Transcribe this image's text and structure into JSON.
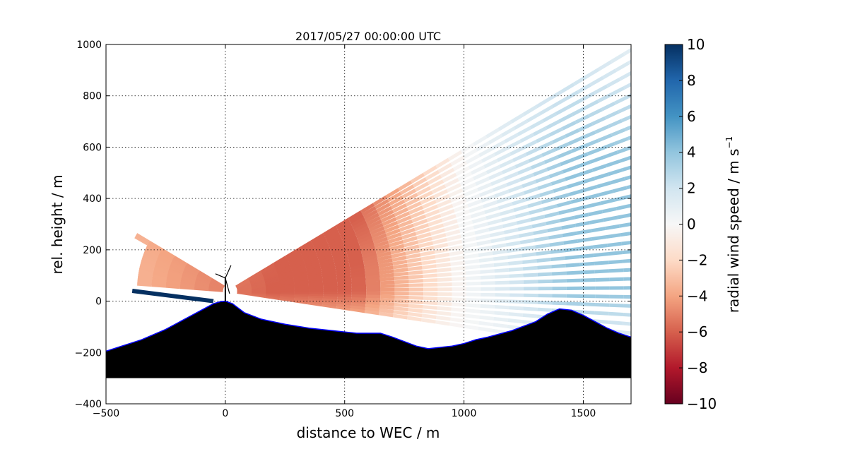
{
  "chart_data": {
    "type": "heatmap",
    "title": "2017/05/27 00:00:00 UTC",
    "xlabel": "distance to WEC / m",
    "ylabel": "rel. height / m",
    "xlim": [
      -500,
      1700
    ],
    "ylim": [
      -400,
      1000
    ],
    "xticks": [
      -500,
      0,
      500,
      1000,
      1500
    ],
    "yticks": [
      -400,
      -200,
      0,
      200,
      400,
      600,
      800,
      1000
    ],
    "xtick_labels": [
      "−500",
      "0",
      "500",
      "1000",
      "1500"
    ],
    "ytick_labels": [
      "−400",
      "−200",
      "0",
      "200",
      "400",
      "600",
      "800",
      "1000"
    ],
    "grid": true,
    "colorbar": {
      "label": "radial wind speed / m s",
      "label_superscript": "−1",
      "range": [
        -10,
        10
      ],
      "ticks": [
        -10,
        -8,
        -6,
        -4,
        -2,
        0,
        2,
        4,
        6,
        8,
        10
      ],
      "tick_labels": [
        "−10",
        "−8",
        "−6",
        "−4",
        "−2",
        "0",
        "2",
        "4",
        "6",
        "8",
        "10"
      ],
      "colormap": "RdBu",
      "colors": [
        "#67001f",
        "#b2182b",
        "#d6604d",
        "#f4a582",
        "#fddbc7",
        "#f7f7f7",
        "#d1e5f0",
        "#92c5de",
        "#4393c3",
        "#2166ac",
        "#053061"
      ]
    },
    "scan": {
      "origin": [
        20,
        40
      ],
      "elevation_range_deg": [
        -8,
        30
      ],
      "max_range_m": 1900,
      "wind_field": "negative radial speed (about −6 m/s) west of ~1000 m, positive (about +4 m/s) east of it, weakening near the ground"
    },
    "terrain": {
      "x": [
        -500,
        -450,
        -400,
        -350,
        -300,
        -250,
        -200,
        -150,
        -100,
        -50,
        -20,
        0,
        30,
        80,
        150,
        250,
        350,
        450,
        550,
        650,
        700,
        800,
        850,
        950,
        1000,
        1050,
        1100,
        1200,
        1300,
        1350,
        1400,
        1450,
        1500,
        1550,
        1600,
        1650,
        1700
      ],
      "y": [
        -195,
        -180,
        -165,
        -150,
        -130,
        -110,
        -85,
        -60,
        -35,
        -10,
        -2,
        0,
        -10,
        -45,
        -70,
        -90,
        -105,
        -115,
        -125,
        -125,
        -140,
        -175,
        -185,
        -175,
        -165,
        -150,
        -140,
        -115,
        -80,
        -50,
        -30,
        -35,
        -55,
        -80,
        -105,
        -125,
        -140
      ],
      "base": -300,
      "fill_color": "#000000",
      "outline_color": "#0000ff"
    },
    "turbine": {
      "x": 0,
      "hub_height_m": 90,
      "color": "#000000"
    },
    "near_ground_beam": {
      "x": [
        -390,
        -50
      ],
      "y": [
        40,
        0
      ],
      "color": "#053061"
    }
  }
}
